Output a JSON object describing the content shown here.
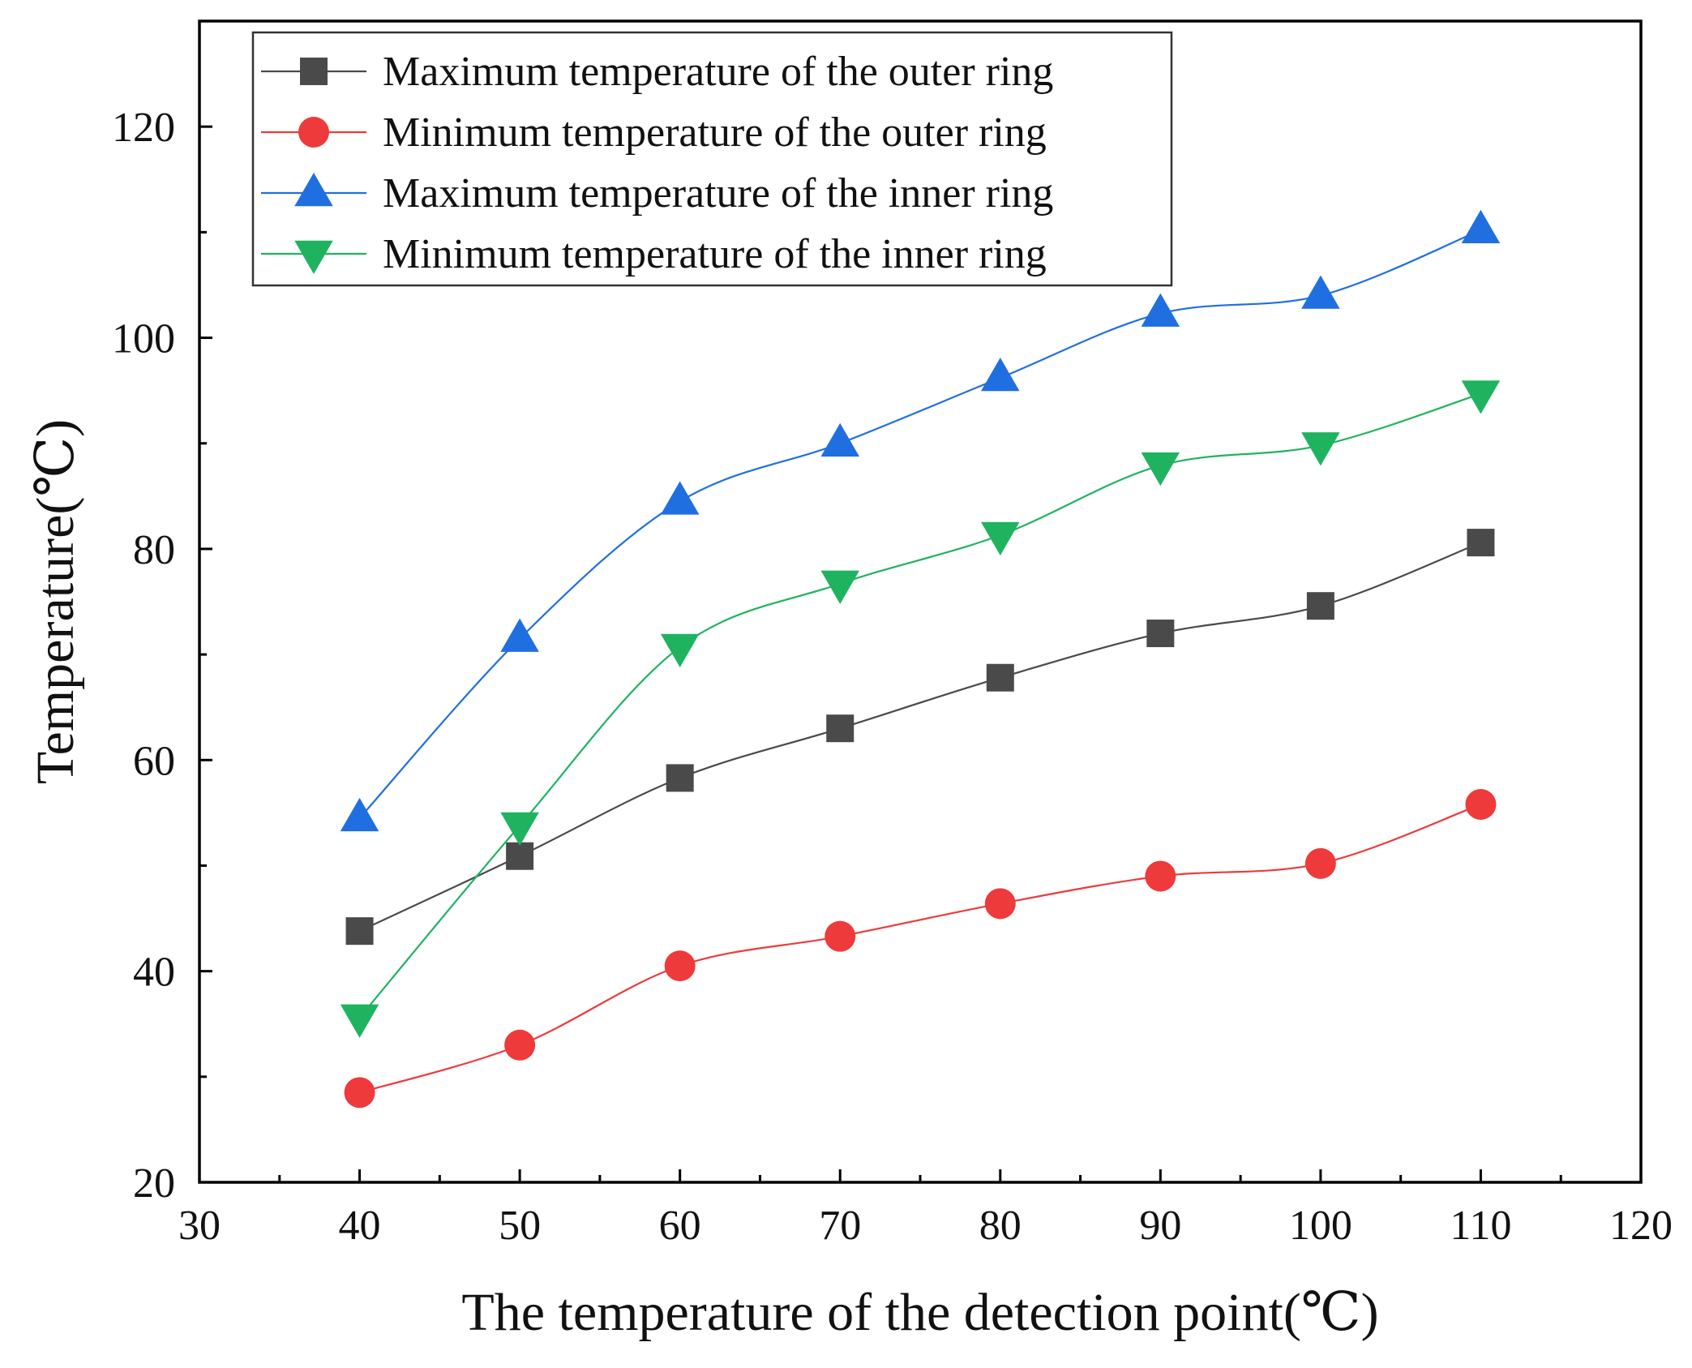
{
  "chart_data": {
    "type": "line",
    "title": "",
    "xlabel": "The temperature of the detection point(℃)",
    "ylabel": "Temperature(℃)",
    "xlim": [
      30,
      120
    ],
    "ylim": [
      20,
      130
    ],
    "xticks": [
      30,
      40,
      50,
      60,
      70,
      80,
      90,
      100,
      110,
      120
    ],
    "yticks": [
      20,
      40,
      60,
      80,
      100,
      120
    ],
    "grid": false,
    "legend_position": "top-left",
    "x": [
      40,
      50,
      60,
      70,
      80,
      90,
      100,
      110
    ],
    "series": [
      {
        "name": "Maximum temperature of the outer ring",
        "marker": "square",
        "color": "#4a4a4a",
        "values": [
          43.8,
          50.9,
          58.3,
          63.0,
          67.8,
          72.0,
          74.6,
          80.6
        ]
      },
      {
        "name": "Minimum temperature of the outer ring",
        "marker": "circle",
        "color": "#ee3a3a",
        "values": [
          28.5,
          33.0,
          40.5,
          43.3,
          46.4,
          49.0,
          50.2,
          55.8
        ]
      },
      {
        "name": "Maximum temperature of the inner ring",
        "marker": "triangle-up",
        "color": "#1f6fe0",
        "values": [
          54.5,
          71.5,
          84.5,
          90.0,
          96.2,
          102.3,
          104.0,
          110.2
        ]
      },
      {
        "name": "Minimum temperature of the inner ring",
        "marker": "triangle-down",
        "color": "#1fb360",
        "values": [
          35.6,
          53.8,
          70.7,
          76.7,
          81.3,
          87.9,
          89.8,
          94.7
        ]
      }
    ]
  }
}
